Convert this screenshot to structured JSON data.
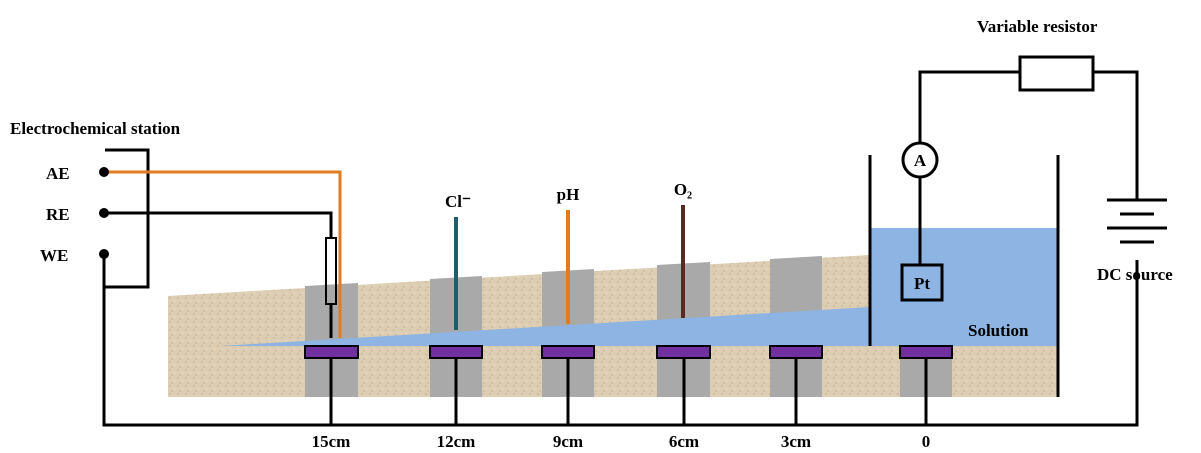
{
  "station": {
    "title": "Electrochemical station",
    "terminals": [
      "AE",
      "RE",
      "WE"
    ]
  },
  "resistor": {
    "label": "Variable resistor"
  },
  "power": {
    "label": "DC source"
  },
  "ammeter": {
    "label": "A"
  },
  "electrode": {
    "label": "Pt"
  },
  "solution": {
    "label": "Solution"
  },
  "sensors": [
    {
      "label": "Cl⁻"
    },
    {
      "label": "pH"
    },
    {
      "label": "O₂"
    }
  ],
  "distances": [
    "15cm",
    "12cm",
    "9cm",
    "6cm",
    "3cm",
    "0"
  ]
}
